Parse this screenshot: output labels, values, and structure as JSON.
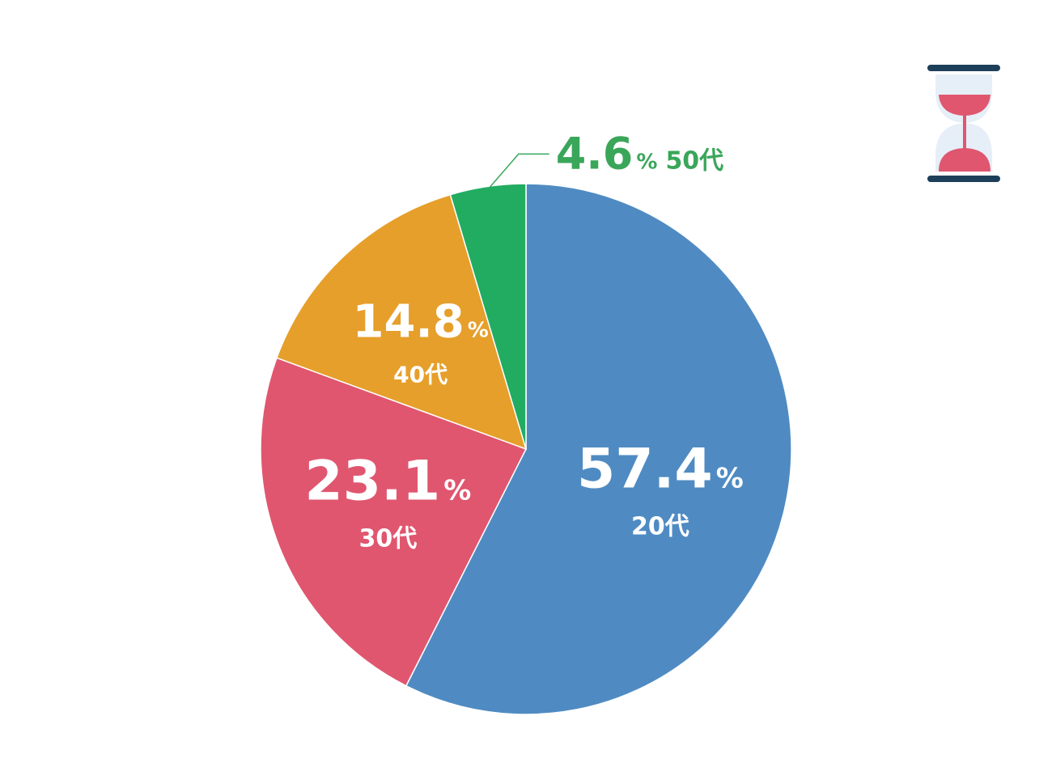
{
  "chart_data": {
    "type": "pie",
    "unit": "%",
    "slices": [
      {
        "label": "20代",
        "value": 57.4,
        "display": "57.4",
        "color": "#4f8bc2"
      },
      {
        "label": "30代",
        "value": 23.1,
        "display": "23.1",
        "color": "#e0566f"
      },
      {
        "label": "40代",
        "value": 14.8,
        "display": "14.8",
        "color": "#e69f2b"
      },
      {
        "label": "50代",
        "value": 4.6,
        "display": "4.6",
        "color": "#21ac62"
      }
    ],
    "outside_label_color": "#3aa65a",
    "inside_label_color": "#ffffff"
  },
  "decoration": {
    "icon": "hourglass-icon",
    "colors": {
      "frame": "#1e3f5a",
      "glass": "#e6eef7",
      "sand": "#e0566f"
    }
  }
}
